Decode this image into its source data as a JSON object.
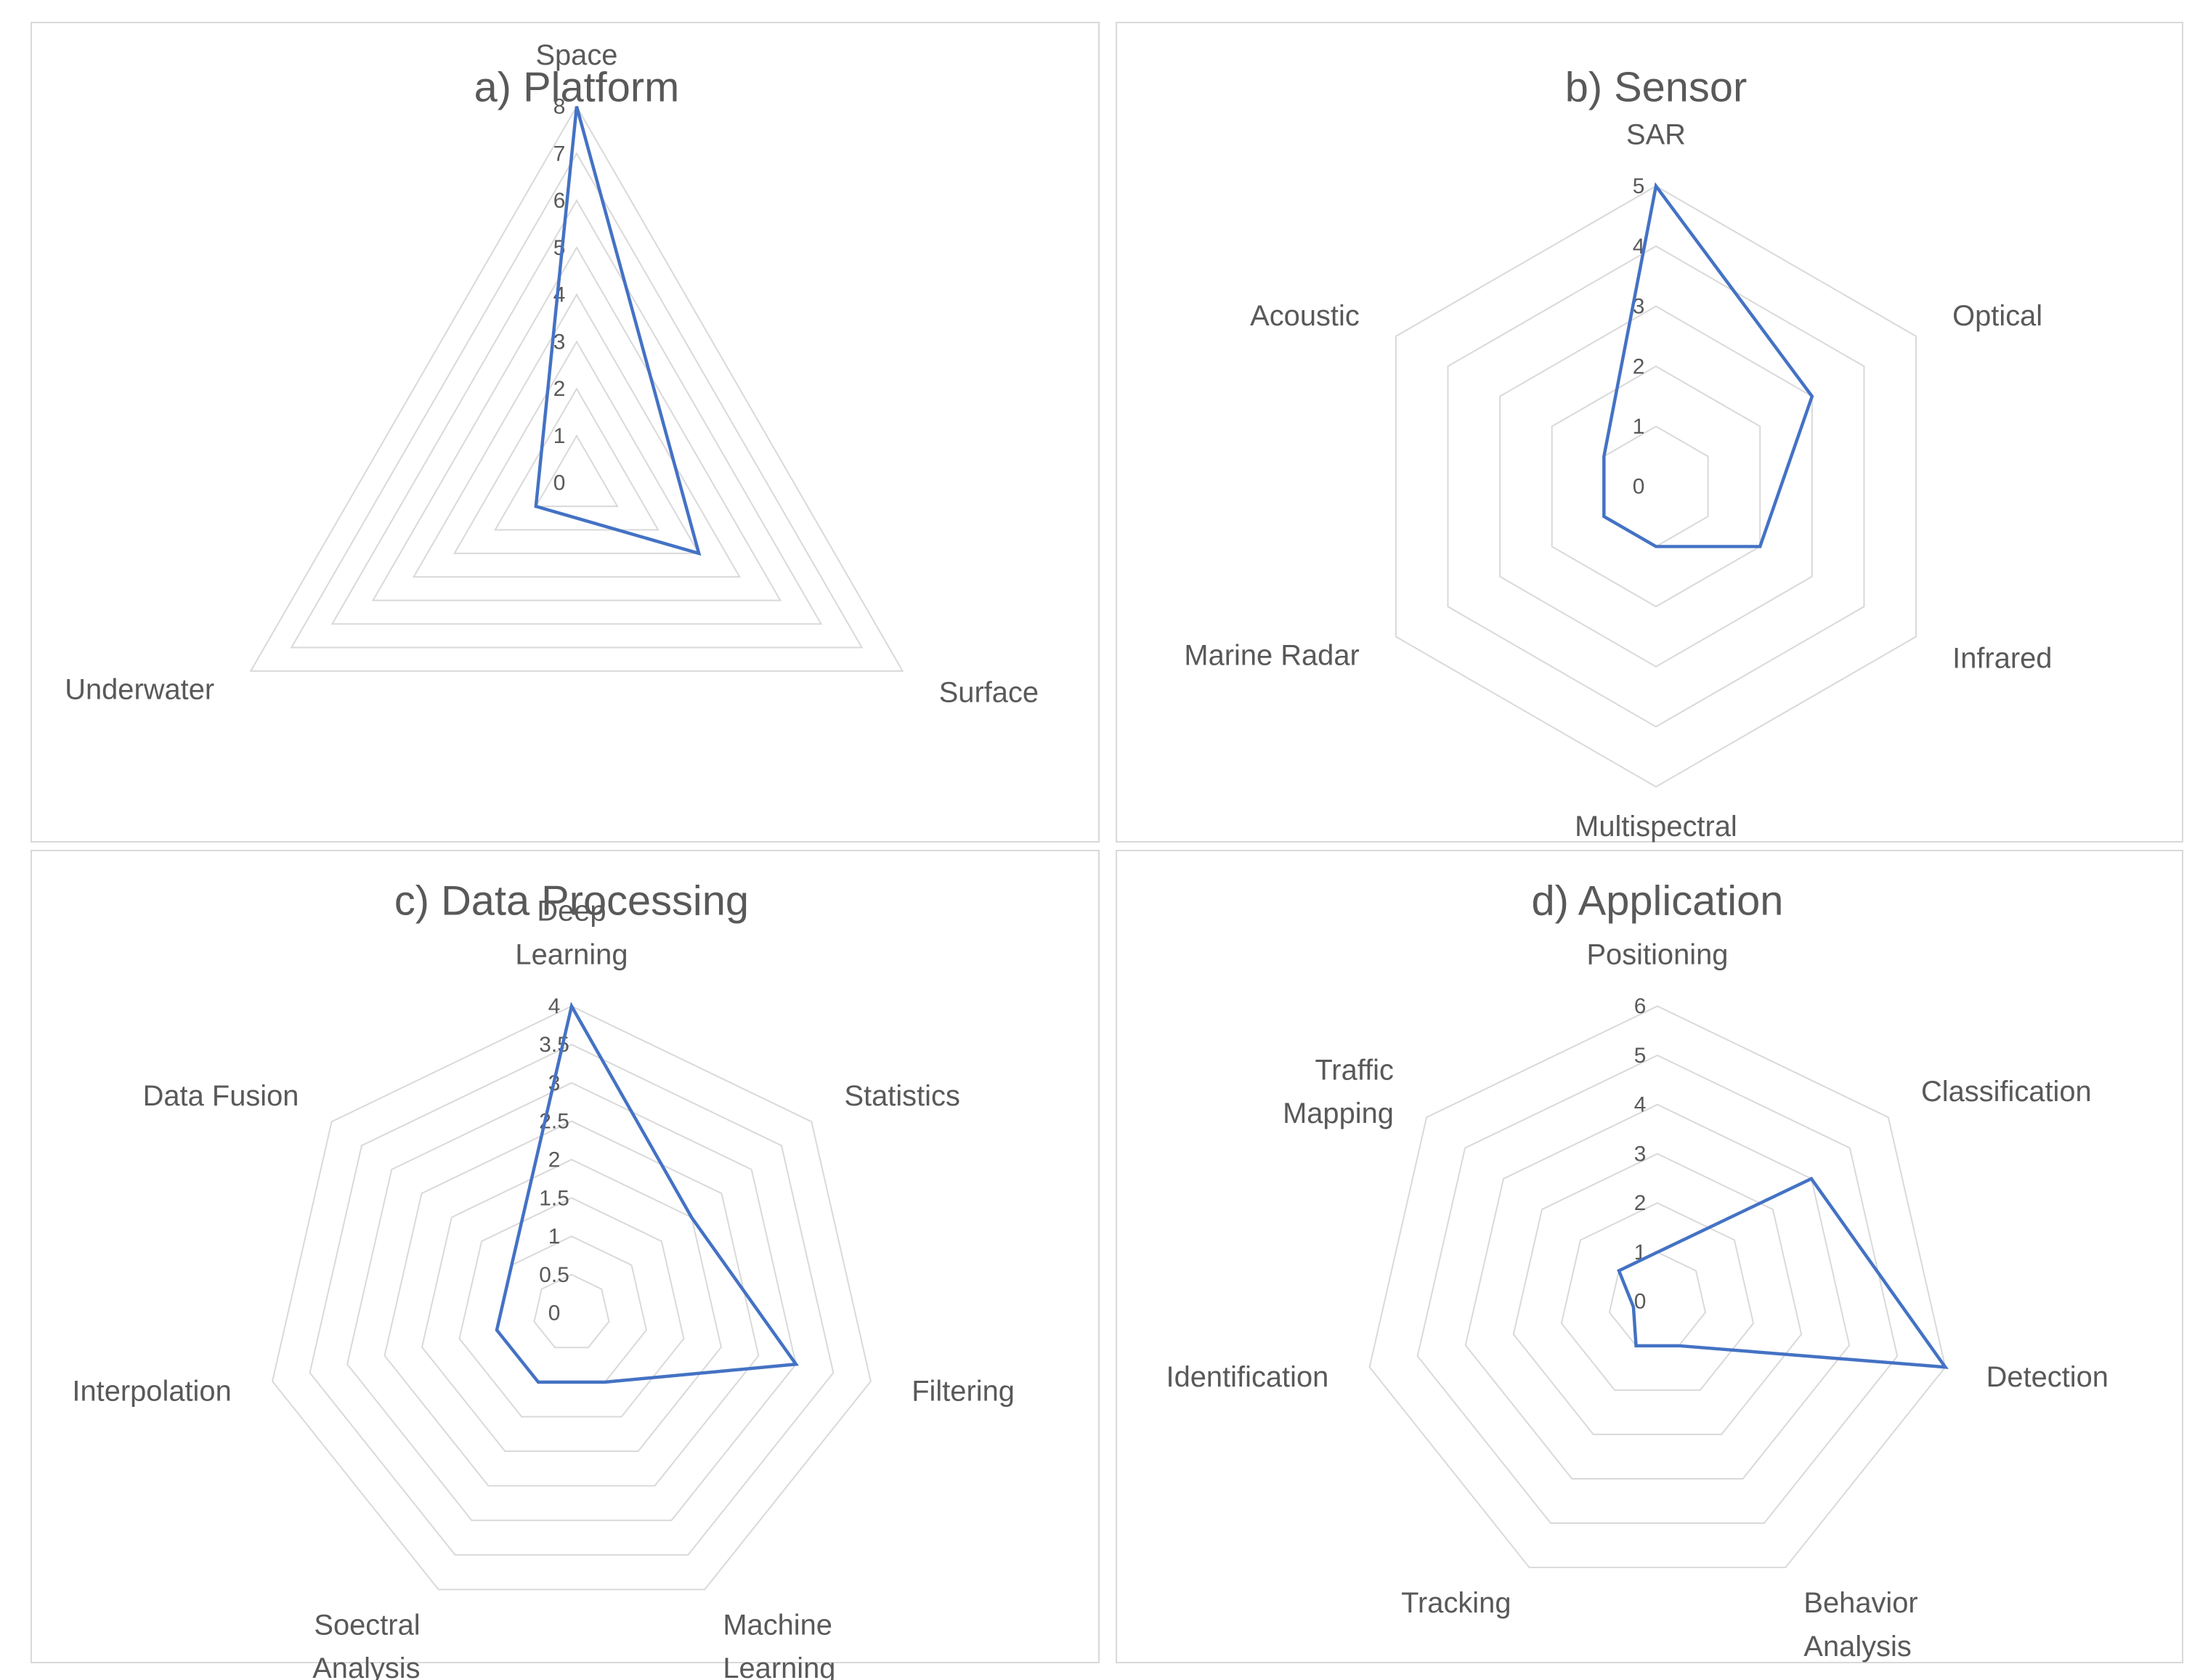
{
  "colors": {
    "series": "#4472C4",
    "grid": "#d9d9d9",
    "text": "#595959"
  },
  "chart_data": [
    {
      "type": "radar",
      "title": "a) Platform",
      "categories": [
        [
          "Space"
        ],
        [
          "Surface"
        ],
        [
          "Underwater"
        ]
      ],
      "series": [
        {
          "values": [
            8,
            3,
            1
          ]
        }
      ],
      "ticks": [
        "0",
        "1",
        "2",
        "3",
        "4",
        "5",
        "6",
        "7",
        "8"
      ],
      "rlim": [
        0,
        8
      ],
      "grid": true
    },
    {
      "type": "radar",
      "title": "b) Sensor",
      "categories": [
        [
          "SAR"
        ],
        [
          "Optical"
        ],
        [
          "Infrared"
        ],
        [
          "Multispectral"
        ],
        [
          "Marine Radar"
        ],
        [
          "Acoustic"
        ]
      ],
      "series": [
        {
          "values": [
            5,
            3,
            2,
            1,
            1,
            1
          ]
        }
      ],
      "ticks": [
        "0",
        "1",
        "2",
        "3",
        "4",
        "5"
      ],
      "rlim": [
        0,
        5
      ],
      "grid": true
    },
    {
      "type": "radar",
      "title": "c) Data Processing",
      "categories": [
        [
          "Deep",
          "Learning"
        ],
        [
          "Statistics"
        ],
        [
          "Filtering"
        ],
        [
          "Machine",
          "Learning"
        ],
        [
          "Soectral",
          "Analysis"
        ],
        [
          "Interpolation"
        ],
        [
          "Data Fusion"
        ]
      ],
      "series": [
        {
          "values": [
            4,
            2,
            3,
            1,
            1,
            1,
            1
          ]
        }
      ],
      "ticks": [
        "0",
        "0.5",
        "1",
        "1.5",
        "2",
        "2.5",
        "3",
        "3.5",
        "4"
      ],
      "rlim": [
        0,
        4
      ],
      "grid": true
    },
    {
      "type": "radar",
      "title": "d) Application",
      "categories": [
        [
          "Positioning"
        ],
        [
          "Classification"
        ],
        [
          "Detection"
        ],
        [
          "Behavior",
          "Analysis"
        ],
        [
          "Tracking"
        ],
        [
          "Identification"
        ],
        [
          "Traffic",
          "Mapping"
        ]
      ],
      "series": [
        {
          "values": [
            1,
            4,
            6,
            1,
            1,
            0.5,
            1
          ]
        }
      ],
      "ticks": [
        "0",
        "1",
        "2",
        "3",
        "4",
        "5",
        "6"
      ],
      "rlim": [
        0,
        6
      ],
      "grid": true
    }
  ]
}
